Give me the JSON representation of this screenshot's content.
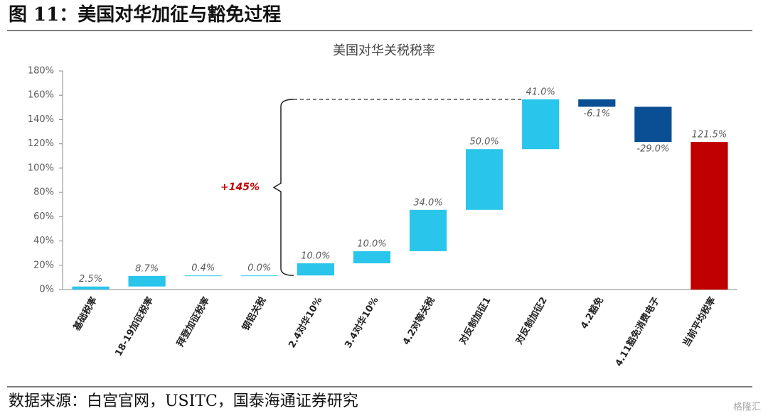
{
  "header": {
    "title": "图 11：美国对华加征与豁免过程"
  },
  "chart_data": {
    "type": "waterfall",
    "title": "美国对华关税税率",
    "categories": [
      "基础税率",
      "18-19加征税率",
      "拜登加征税率",
      "钢铝关税",
      "2.4对华10%",
      "3.4对华10%",
      "4.2对等关税",
      "对反制加征1",
      "对反制加征2",
      "4.2豁免",
      "4.11豁免消费电子",
      "当前平均税率"
    ],
    "values": [
      2.5,
      8.7,
      0.4,
      0.0,
      10.0,
      10.0,
      34.0,
      50.0,
      41.0,
      -6.1,
      -29.0,
      121.5
    ],
    "value_labels": [
      "2.5%",
      "8.7%",
      "0.4%",
      "0.0%",
      "10.0%",
      "10.0%",
      "34.0%",
      "50.0%",
      "41.0%",
      "-6.1%",
      "-29.0%",
      "121.5%"
    ],
    "measure": [
      "relative",
      "relative",
      "relative",
      "relative",
      "relative",
      "relative",
      "relative",
      "relative",
      "relative",
      "relative",
      "relative",
      "total"
    ],
    "colors": [
      "#29c5ea",
      "#29c5ea",
      "#29c5ea",
      "#29c5ea",
      "#29c5ea",
      "#29c5ea",
      "#29c5ea",
      "#29c5ea",
      "#29c5ea",
      "#0a4f94",
      "#0a4f94",
      "#c00000"
    ],
    "ylim": [
      0,
      180
    ],
    "yticks": [
      {
        "value": 0,
        "label": "0%"
      },
      {
        "value": 20,
        "label": "20%"
      },
      {
        "value": 40,
        "label": "40%"
      },
      {
        "value": 60,
        "label": "60%"
      },
      {
        "value": 80,
        "label": "80%"
      },
      {
        "value": 100,
        "label": "100%"
      },
      {
        "value": 120,
        "label": "120%"
      },
      {
        "value": 140,
        "label": "140%"
      },
      {
        "value": 160,
        "label": "160%"
      },
      {
        "value": 180,
        "label": "180%"
      }
    ],
    "annotation": "+145%"
  },
  "footer": {
    "source": "数据来源：白宫官网，USITC，国泰海通证券研究",
    "watermark": "格隆汇"
  }
}
